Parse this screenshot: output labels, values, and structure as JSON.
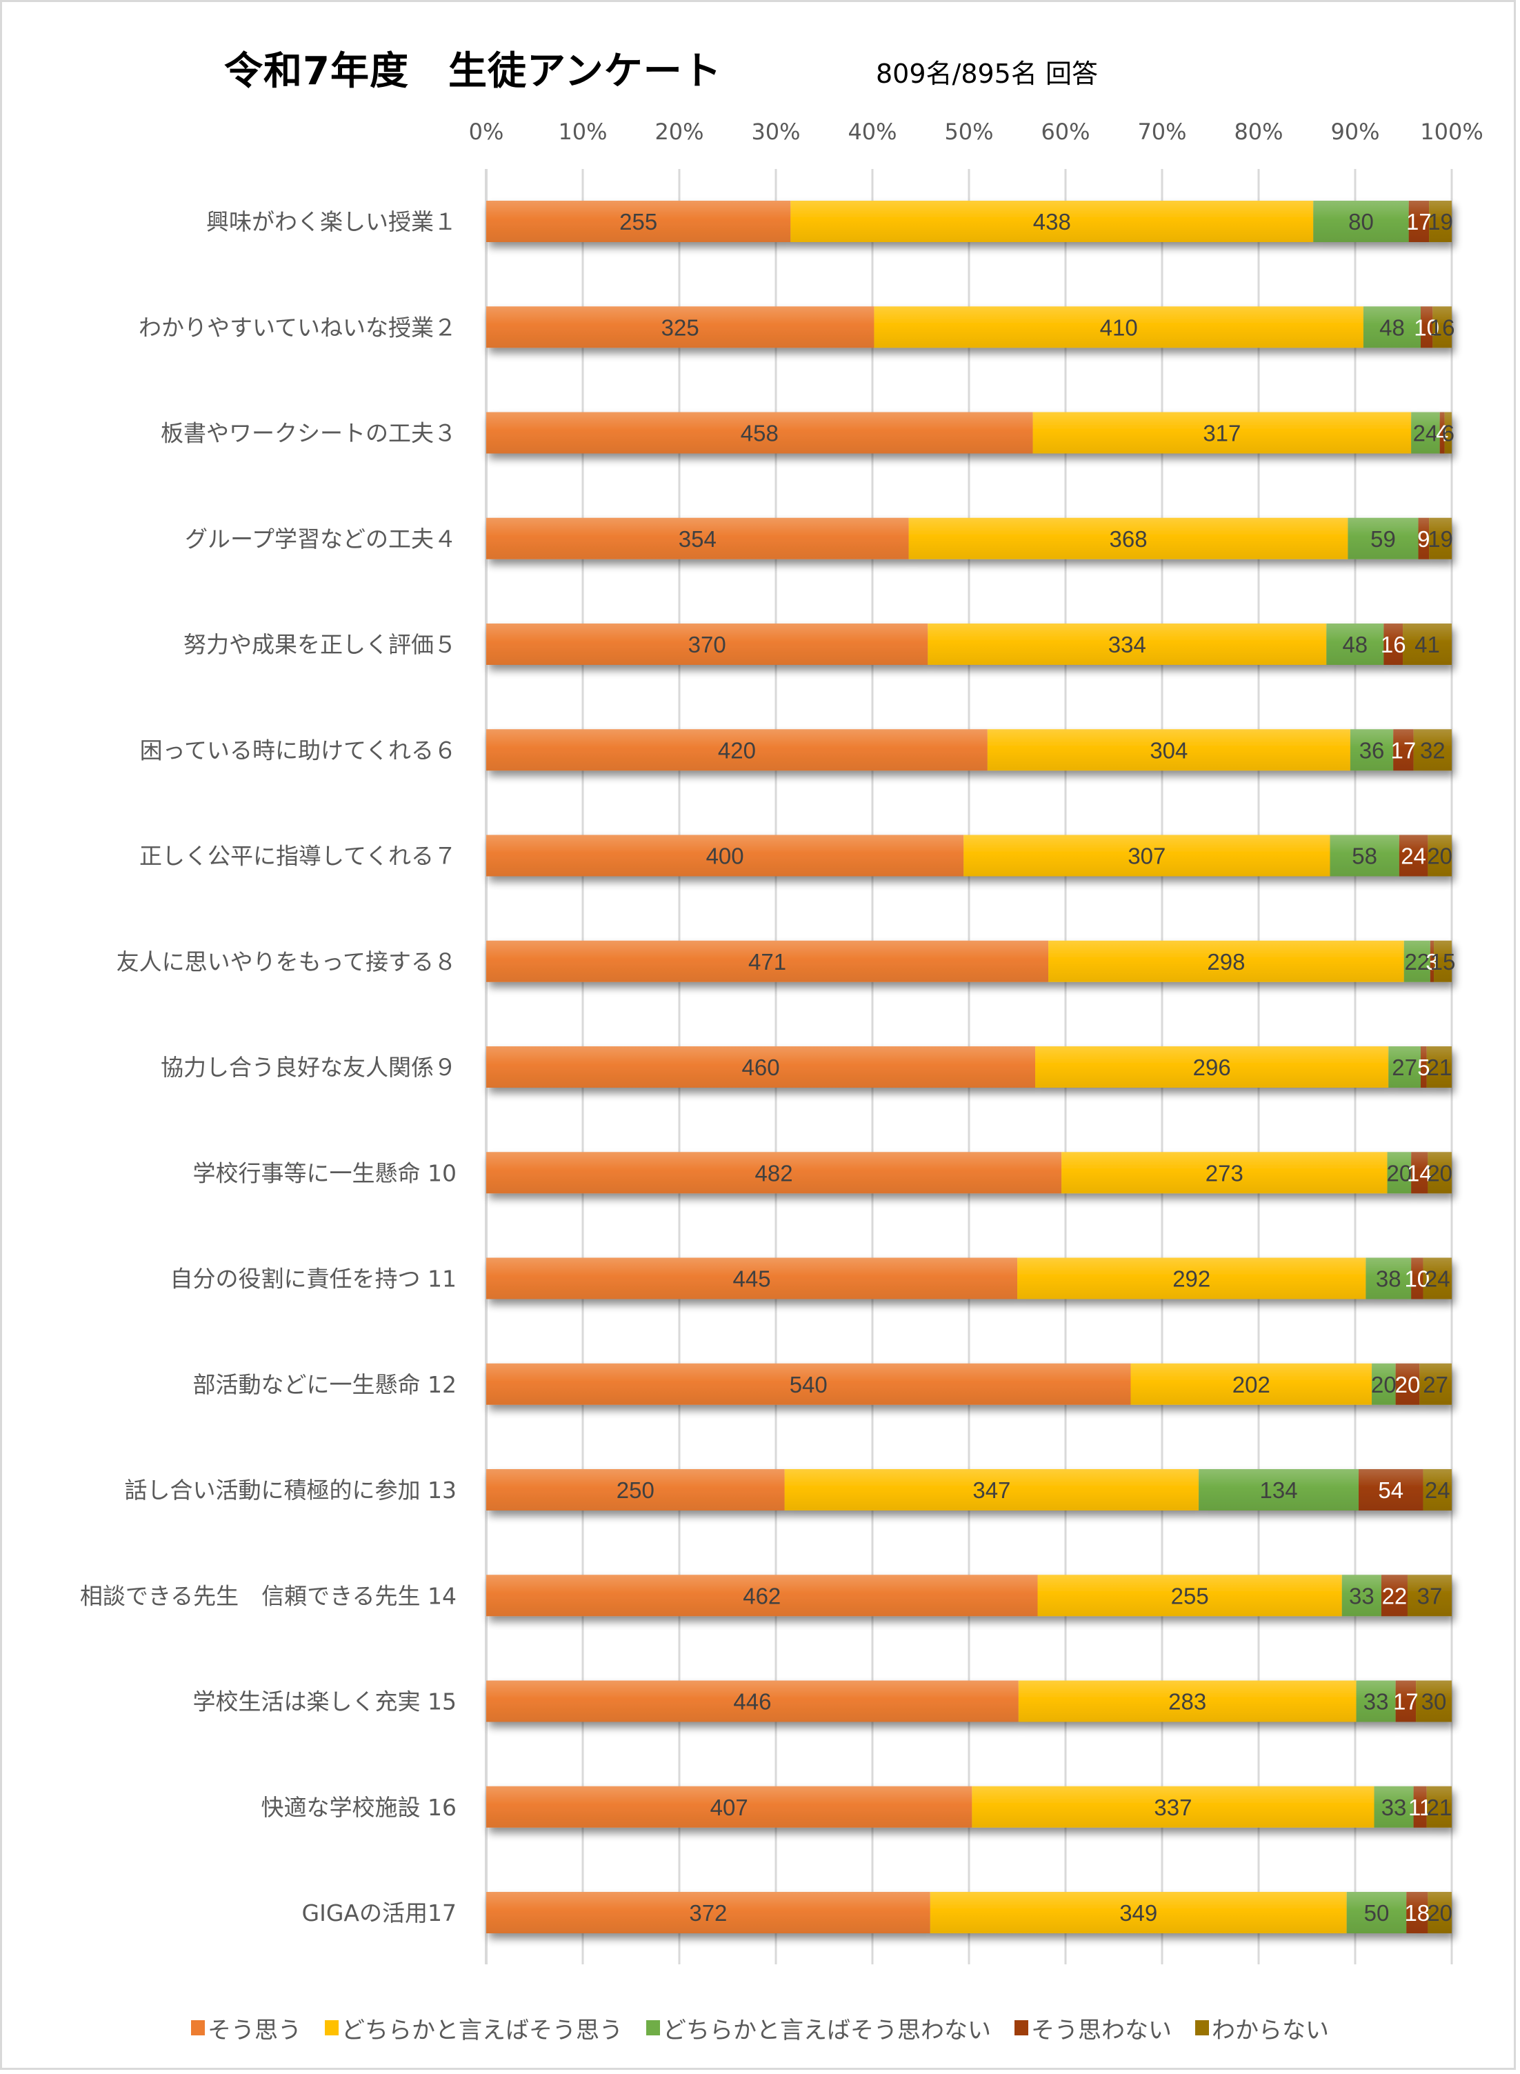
{
  "header": {
    "title": "令和7年度　生徒アンケート",
    "subtitle": "809名/895名 回答"
  },
  "chart_data": {
    "type": "bar",
    "orientation": "horizontal",
    "stacking": "percent",
    "title": "令和7年度　生徒アンケート",
    "subtitle": "809名/895名 回答",
    "xlabel": "",
    "ylabel": "",
    "xlim": [
      0,
      100
    ],
    "x_ticks": [
      "0%",
      "10%",
      "20%",
      "30%",
      "40%",
      "50%",
      "60%",
      "70%",
      "80%",
      "90%",
      "100%"
    ],
    "grid": true,
    "legend_position": "bottom",
    "categories": [
      "興味がわく楽しい授業１",
      "わかりやすいていねいな授業２",
      "板書やワークシートの工夫３",
      "グループ学習などの工夫４",
      "努力や成果を正しく評価５",
      "困っている時に助けてくれる６",
      "正しく公平に指導してくれる７",
      "友人に思いやりをもって接する８",
      "協力し合う良好な友人関係９",
      "学校行事等に一生懸命 10",
      "自分の役割に責任を持つ 11",
      "部活動などに一生懸命 12",
      "話し合い活動に積極的に参加 13",
      "相談できる先生　信頼できる先生 14",
      "学校生活は楽しく充実 15",
      "快適な学校施設 16",
      "GIGAの活用17"
    ],
    "series": [
      {
        "name": "そう思う",
        "color": "#ED7D31",
        "label_color": "#404040",
        "values": [
          255,
          325,
          458,
          354,
          370,
          420,
          400,
          471,
          460,
          482,
          445,
          540,
          250,
          462,
          446,
          407,
          372
        ]
      },
      {
        "name": "どちらかと言えばそう思う",
        "color": "#FFC000",
        "label_color": "#404040",
        "values": [
          438,
          410,
          317,
          368,
          334,
          304,
          307,
          298,
          296,
          273,
          292,
          202,
          347,
          255,
          283,
          337,
          349
        ]
      },
      {
        "name": "どちらかと言えばそう思わない",
        "color": "#70AD47",
        "label_color": "#404040",
        "values": [
          80,
          48,
          24,
          59,
          48,
          36,
          58,
          22,
          27,
          20,
          38,
          20,
          134,
          33,
          33,
          33,
          50
        ]
      },
      {
        "name": "そう思わない",
        "color": "#9E3D0A",
        "label_color": "#FFFFFF",
        "values": [
          17,
          10,
          4,
          9,
          16,
          17,
          24,
          3,
          5,
          14,
          10,
          20,
          54,
          22,
          17,
          11,
          18
        ]
      },
      {
        "name": "わからない",
        "color": "#997300",
        "label_color": "#404040",
        "values": [
          19,
          16,
          6,
          19,
          41,
          32,
          20,
          15,
          21,
          20,
          24,
          27,
          24,
          37,
          30,
          21,
          20
        ]
      }
    ]
  },
  "style": {
    "gridline_color": "#d9d9d9",
    "tick_color": "#595959"
  }
}
